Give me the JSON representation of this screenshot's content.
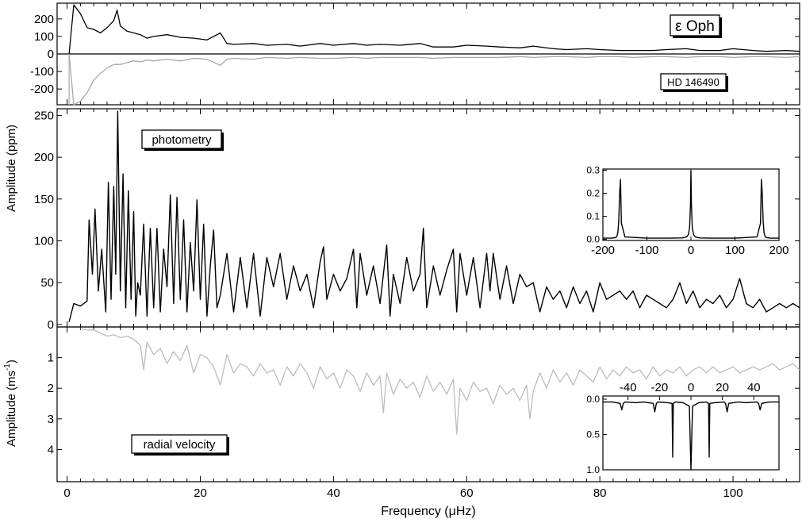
{
  "chart_data": [
    {
      "type": "line",
      "panel": "top",
      "ylabel": "",
      "xlim": [
        -1.5,
        110
      ],
      "ylim": [
        -290,
        290
      ],
      "yticks": [
        200,
        100,
        0,
        -100,
        -200
      ],
      "ytick_labels": [
        "200",
        "100",
        "0",
        "-100",
        "-200"
      ],
      "zero_line": true,
      "annotations": [
        {
          "name": "eps-oph-label",
          "text": "ε Oph",
          "boxed": true,
          "shadow": true
        },
        {
          "name": "hd-label",
          "text": "HD 146490",
          "boxed": true,
          "shadow": true
        }
      ],
      "series": [
        {
          "name": "ε Oph",
          "color": "#000000",
          "x": [
            0.3,
            1,
            2,
            3,
            4,
            5,
            6,
            7,
            7.5,
            8,
            9,
            10,
            11,
            12,
            13,
            15,
            17,
            19,
            21,
            23,
            24,
            25,
            28,
            30,
            33,
            35,
            38,
            40,
            43,
            45,
            47,
            50,
            53,
            55,
            58,
            60,
            63,
            65,
            68,
            70,
            73,
            75,
            78,
            80,
            83,
            85,
            88,
            90,
            93,
            95,
            98,
            100,
            103,
            105,
            108,
            110
          ],
          "y": [
            0,
            280,
            230,
            150,
            140,
            120,
            150,
            190,
            250,
            160,
            130,
            120,
            110,
            90,
            100,
            110,
            95,
            90,
            80,
            120,
            60,
            55,
            60,
            50,
            55,
            45,
            60,
            50,
            60,
            50,
            55,
            50,
            60,
            40,
            40,
            50,
            45,
            40,
            35,
            45,
            30,
            25,
            30,
            25,
            20,
            20,
            20,
            25,
            30,
            20,
            20,
            30,
            20,
            15,
            20,
            15
          ]
        },
        {
          "name": "HD 146490",
          "color": "#a8a8a8",
          "x": [
            0.3,
            1,
            2,
            3,
            4,
            5,
            6,
            7,
            8,
            9,
            10,
            11,
            12,
            13,
            15,
            17,
            19,
            21,
            23,
            24,
            25,
            28,
            30,
            33,
            35,
            38,
            40,
            43,
            45,
            47,
            50,
            53,
            55,
            58,
            60,
            63,
            65,
            68,
            70,
            73,
            75,
            78,
            80,
            83,
            85,
            88,
            90,
            93,
            95,
            98,
            100,
            103,
            105,
            108,
            110
          ],
          "y": [
            0,
            -290,
            -270,
            -220,
            -150,
            -110,
            -80,
            -60,
            -60,
            -50,
            -40,
            -45,
            -35,
            -40,
            -30,
            -40,
            -25,
            -30,
            -65,
            -30,
            -25,
            -30,
            -20,
            -25,
            -20,
            -25,
            -25,
            -20,
            -25,
            -20,
            -20,
            -20,
            -25,
            -20,
            -20,
            -20,
            -20,
            -15,
            -20,
            -15,
            -15,
            -20,
            -15,
            -15,
            -20,
            -15,
            -15,
            -20,
            -15,
            -15,
            -20,
            -15,
            -15,
            -20,
            -15
          ]
        }
      ]
    },
    {
      "type": "line",
      "panel": "middle",
      "ylabel": "Amplitude (ppm)",
      "xlim": [
        -1.5,
        110
      ],
      "ylim": [
        -3,
        258
      ],
      "yticks": [
        0,
        50,
        100,
        150,
        200,
        250
      ],
      "ytick_labels": [
        "0",
        "50",
        "100",
        "150",
        "200",
        "250"
      ],
      "annotations": [
        {
          "name": "photometry-label",
          "text": "photometry",
          "boxed": true,
          "shadow": true
        }
      ],
      "series": [
        {
          "name": "photometry",
          "color": "#000000",
          "x": [
            0.3,
            1,
            2,
            3,
            3.3,
            3.8,
            4.2,
            4.7,
            5.2,
            5.8,
            6.2,
            6.6,
            7,
            7.3,
            7.6,
            8,
            8.4,
            8.8,
            9.2,
            9.6,
            10,
            10.3,
            10.6,
            11,
            11.5,
            12,
            12.5,
            13,
            13.5,
            14,
            14.5,
            15,
            15.5,
            16,
            16.5,
            17,
            17.5,
            18,
            18.5,
            19,
            19.5,
            20,
            20.5,
            21,
            21.5,
            22,
            22.5,
            23,
            24,
            25,
            26,
            27,
            28,
            29,
            30,
            31,
            32,
            33,
            34,
            35,
            36,
            37,
            38,
            38.5,
            39,
            40,
            41,
            42,
            43,
            43.5,
            44,
            45,
            46,
            47,
            48,
            48.5,
            49,
            50,
            51,
            52,
            53,
            53.5,
            54,
            55,
            56,
            57,
            58,
            58.5,
            59,
            60,
            61,
            62,
            63,
            63.5,
            64,
            65,
            66,
            67,
            68,
            69,
            70,
            71,
            72,
            73,
            74,
            75,
            76,
            77,
            78,
            79,
            80,
            81,
            82,
            83,
            84,
            85,
            86,
            87,
            88,
            89,
            90,
            91,
            92,
            93,
            94,
            95,
            96,
            97,
            98,
            99,
            100,
            101,
            102,
            103,
            104,
            105,
            106,
            107,
            108,
            109,
            110
          ],
          "y": [
            3,
            25,
            22,
            28,
            125,
            60,
            138,
            40,
            90,
            15,
            170,
            30,
            165,
            60,
            255,
            40,
            180,
            20,
            160,
            30,
            135,
            10,
            50,
            35,
            120,
            10,
            115,
            20,
            115,
            15,
            90,
            45,
            155,
            25,
            152,
            30,
            125,
            15,
            98,
            40,
            149,
            30,
            120,
            10,
            70,
            113,
            20,
            35,
            85,
            15,
            80,
            20,
            85,
            10,
            80,
            45,
            85,
            30,
            70,
            40,
            60,
            20,
            75,
            93,
            30,
            60,
            40,
            55,
            90,
            20,
            85,
            35,
            70,
            25,
            95,
            10,
            60,
            25,
            80,
            40,
            60,
            115,
            20,
            70,
            35,
            65,
            90,
            15,
            85,
            35,
            80,
            20,
            85,
            40,
            85,
            30,
            70,
            25,
            60,
            45,
            50,
            15,
            45,
            30,
            40,
            20,
            45,
            25,
            40,
            15,
            50,
            30,
            35,
            40,
            30,
            40,
            20,
            35,
            30,
            25,
            20,
            30,
            50,
            25,
            40,
            20,
            30,
            25,
            35,
            20,
            30,
            55,
            25,
            20,
            30,
            15,
            20,
            25,
            20,
            25,
            20
          ]
        }
      ],
      "inset": {
        "name": "photometry-spectral-window",
        "xlim": [
          -200,
          200
        ],
        "ylim": [
          -0.005,
          0.305
        ],
        "xticks": [
          -200,
          -100,
          0,
          100,
          200
        ],
        "xtick_labels": [
          "-200",
          "-100",
          "0",
          "100",
          "200"
        ],
        "yticks": [
          0.0,
          0.1,
          0.2,
          0.3
        ],
        "ytick_labels": [
          "0.0",
          "0.1",
          "0.2",
          "0.3"
        ],
        "series": [
          {
            "name": "window",
            "color": "#000000",
            "x": [
              -200,
              -180,
              -170,
              -168,
              -166,
              -164,
              -162,
              -160,
              -158,
              -150,
              -100,
              -50,
              -20,
              -10,
              -6,
              -3,
              -1,
              0,
              1,
              3,
              6,
              10,
              20,
              50,
              100,
              150,
              158,
              160,
              162,
              164,
              166,
              168,
              170,
              180,
              200
            ],
            "y": [
              0.005,
              0.005,
              0.008,
              0.015,
              0.03,
              0.08,
              0.2,
              0.26,
              0.07,
              0.01,
              0.005,
              0.005,
              0.006,
              0.01,
              0.02,
              0.05,
              0.15,
              0.3,
              0.15,
              0.05,
              0.02,
              0.01,
              0.006,
              0.005,
              0.005,
              0.01,
              0.07,
              0.26,
              0.2,
              0.08,
              0.03,
              0.015,
              0.008,
              0.005,
              0.005
            ]
          }
        ]
      }
    },
    {
      "type": "line",
      "panel": "bottom",
      "ylabel": "Amplitude (ms⁻¹)",
      "ylabel_main": "Amplitude (ms",
      "ylabel_sup": "-1",
      "ylabel_close": ")",
      "y_inverted": true,
      "xlabel": "Frequency (μHz)",
      "xlim": [
        -1.5,
        110
      ],
      "ylim": [
        0,
        5.05
      ],
      "xticks": [
        0,
        20,
        40,
        60,
        80,
        100
      ],
      "xtick_labels": [
        "0",
        "20",
        "40",
        "60",
        "80",
        "100"
      ],
      "yticks": [
        1,
        2,
        3,
        4
      ],
      "ytick_labels": [
        "1",
        "2",
        "3",
        "4"
      ],
      "annotations": [
        {
          "name": "radial-velocity-label",
          "text": "radial velocity",
          "boxed": true,
          "shadow": true
        }
      ],
      "series": [
        {
          "name": "radial velocity",
          "color": "#bcbcbc",
          "x": [
            2,
            3,
            4,
            5,
            6,
            7,
            8,
            9,
            10,
            11,
            11.5,
            12,
            13,
            14,
            15,
            16,
            17,
            18,
            19,
            20,
            21,
            22,
            23,
            24,
            25,
            26,
            27,
            28,
            29,
            30,
            31,
            32,
            33,
            34,
            35,
            36,
            37,
            38,
            39,
            40,
            41,
            42,
            43,
            44,
            45,
            46,
            47,
            47.5,
            48,
            49,
            50,
            51,
            52,
            53,
            54,
            55,
            56,
            57,
            58,
            58.5,
            59,
            60,
            61,
            62,
            63,
            64,
            65,
            66,
            67,
            68,
            69,
            69.5,
            70,
            71,
            72,
            73,
            74,
            75,
            76,
            77,
            78,
            79,
            80,
            81,
            82,
            83,
            84,
            85,
            86,
            87,
            88,
            89,
            90,
            91,
            92,
            93,
            94,
            95,
            96,
            97,
            98,
            99,
            100,
            101,
            102,
            103,
            104,
            105,
            106,
            107,
            108,
            109,
            110
          ],
          "y": [
            0.05,
            0.1,
            0.1,
            0.2,
            0.3,
            0.25,
            0.35,
            0.3,
            0.4,
            0.6,
            1.4,
            0.5,
            0.9,
            0.7,
            1.2,
            0.8,
            1.1,
            0.6,
            1.5,
            0.9,
            1.0,
            1.3,
            1.9,
            0.9,
            1.5,
            1.2,
            1.3,
            1.6,
            1.2,
            1.5,
            1.4,
            1.9,
            1.3,
            1.6,
            1.2,
            1.5,
            2.0,
            1.3,
            1.7,
            1.5,
            2.0,
            1.4,
            1.6,
            2.1,
            1.5,
            1.9,
            1.6,
            2.8,
            1.5,
            2.2,
            1.7,
            2.0,
            1.8,
            2.3,
            1.6,
            2.1,
            1.8,
            2.2,
            1.7,
            3.5,
            2.0,
            2.4,
            1.8,
            2.1,
            2.0,
            2.5,
            1.9,
            2.2,
            2.0,
            2.4,
            1.9,
            3.0,
            2.1,
            1.5,
            2.0,
            1.4,
            1.8,
            1.5,
            1.9,
            1.4,
            1.6,
            1.8,
            1.3,
            1.7,
            1.4,
            1.6,
            1.3,
            1.5,
            1.4,
            1.7,
            1.3,
            1.6,
            1.4,
            1.5,
            1.3,
            1.6,
            1.4,
            1.3,
            1.5,
            1.3,
            1.5,
            1.4,
            1.3,
            1.5,
            1.4,
            1.3,
            1.4,
            1.3,
            1.2,
            1.4,
            1.3,
            1.2,
            1.4
          ]
        }
      ],
      "inset": {
        "name": "rv-spectral-window",
        "y_inverted": true,
        "xlim": [
          -56,
          56
        ],
        "ylim": [
          0,
          1.0
        ],
        "xticks": [
          -40,
          -20,
          0,
          20,
          40
        ],
        "xtick_labels": [
          "-40",
          "-20",
          "0",
          "20",
          "40"
        ],
        "yticks": [
          0.0,
          0.5,
          1.0
        ],
        "ytick_labels": [
          "0.0",
          "0.5",
          "1.0"
        ],
        "series": [
          {
            "name": "window",
            "color": "#000000",
            "x": [
              -56,
              -50,
              -45,
              -44,
              -43,
              -42,
              -35,
              -30,
              -24,
              -23,
              -22,
              -21,
              -15,
              -12,
              -11.6,
              -11.2,
              -10,
              -5,
              -1,
              0,
              1,
              5,
              10,
              11.2,
              11.6,
              12,
              15,
              21,
              22,
              23,
              24,
              30,
              35,
              42,
              43,
              44,
              45,
              50,
              56
            ],
            "y": [
              0.04,
              0.04,
              0.06,
              0.15,
              0.06,
              0.04,
              0.05,
              0.04,
              0.06,
              0.18,
              0.06,
              0.04,
              0.05,
              0.06,
              0.82,
              0.06,
              0.04,
              0.05,
              0.1,
              1.0,
              0.1,
              0.05,
              0.04,
              0.06,
              0.82,
              0.06,
              0.05,
              0.04,
              0.06,
              0.18,
              0.06,
              0.04,
              0.05,
              0.04,
              0.06,
              0.15,
              0.06,
              0.04,
              0.04
            ]
          }
        ]
      }
    }
  ]
}
